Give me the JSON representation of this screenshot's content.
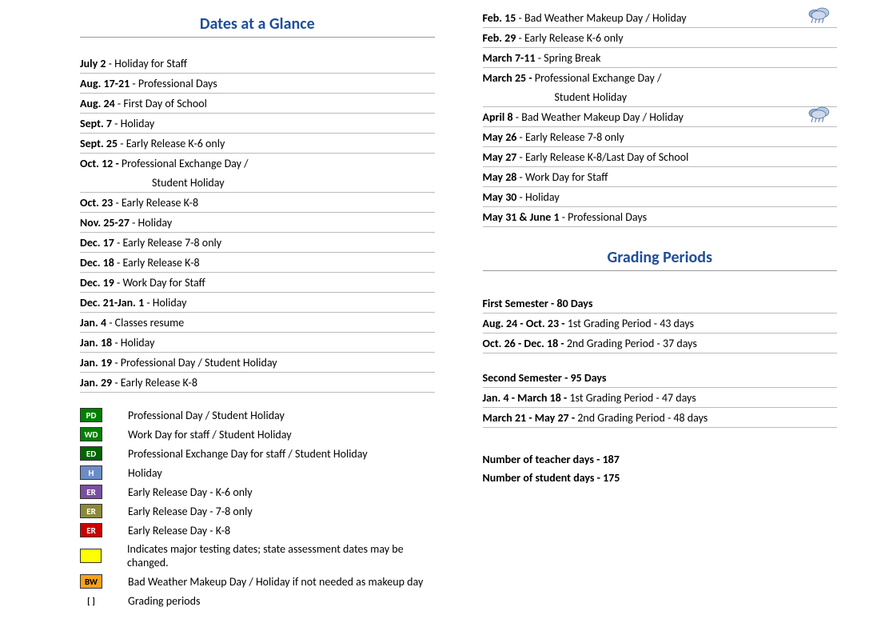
{
  "titles": {
    "dates": "Dates at a Glance",
    "grading": "Grading Periods"
  },
  "colors": {
    "title": "#1f4e9b",
    "pd_bg": "#008000",
    "pd_fg": "#ffffff",
    "wd_bg": "#008000",
    "wd_fg": "#ffffff",
    "ed_bg": "#006400",
    "ed_fg": "#ffffff",
    "h_bg": "#6b8cc7",
    "h_fg": "#ffffff",
    "er6_bg": "#7a4fa0",
    "er6_fg": "#ffffff",
    "er78_bg": "#8a8a3a",
    "er78_fg": "#ffffff",
    "er8_bg": "#cc0000",
    "er8_fg": "#ffffff",
    "test_bg": "#ffff00",
    "test_fg": "#000000",
    "bw_bg": "#f7a11a",
    "bw_fg": "#000000",
    "gp_fg": "#000000"
  },
  "left_dates": [
    {
      "date": "July 2",
      "sep": " - ",
      "desc": "Holiday for Staff"
    },
    {
      "date": "Aug. 17-21",
      "sep": " - ",
      "desc": "Professional Days"
    },
    {
      "date": "Aug. 24",
      "sep": " - ",
      "desc": "First Day of School"
    },
    {
      "date": "Sept. 7",
      "sep": " - ",
      "desc": "Holiday"
    },
    {
      "date": "Sept. 25",
      "sep": " - ",
      "desc": "Early Release K-6 only"
    },
    {
      "date": "Oct. 12 -",
      "sep": " ",
      "desc": "Professional Exchange Day /",
      "cont": "Student Holiday"
    },
    {
      "date": "Oct. 23",
      "sep": " - ",
      "desc": "Early Release K-8"
    },
    {
      "date": "Nov. 25-27",
      "sep": " - ",
      "desc": "Holiday"
    },
    {
      "date": "Dec. 17",
      "sep": " - ",
      "desc": "Early Release 7-8 only"
    },
    {
      "date": "Dec. 18",
      "sep": " - ",
      "desc": "Early Release K-8"
    },
    {
      "date": "Dec. 19",
      "sep": " - ",
      "desc": "Work Day for Staff"
    },
    {
      "date": "Dec. 21-Jan. 1",
      "sep": " - ",
      "desc": "Holiday"
    },
    {
      "date": "Jan. 4",
      "sep": " - ",
      "desc": "Classes resume"
    },
    {
      "date": "Jan. 18",
      "sep": " - ",
      "desc": "Holiday"
    },
    {
      "date": "Jan. 19",
      "sep": " - ",
      "desc": "Professional Day / Student Holiday"
    },
    {
      "date": "Jan. 29",
      "sep": " - ",
      "desc": "Early Release K-8"
    }
  ],
  "right_dates": [
    {
      "date": "Feb. 15",
      "sep": " - ",
      "desc": "Bad Weather Makeup Day / Holiday",
      "cloud": true
    },
    {
      "date": "Feb. 29",
      "sep": " - ",
      "desc": "Early Release K-6 only"
    },
    {
      "date": "March 7-11",
      "sep": " - ",
      "desc": "Spring Break"
    },
    {
      "date": "March 25 -",
      "sep": " ",
      "desc": "Professional Exchange Day /",
      "cont": "Student Holiday"
    },
    {
      "date": "April 8",
      "sep": " - ",
      "desc": "Bad Weather Makeup Day / Holiday",
      "cloud": true
    },
    {
      "date": "May 26",
      "sep": " - ",
      "desc": "Early Release 7-8 only"
    },
    {
      "date": "May 27",
      "sep": " - ",
      "desc": "Early Release K-8/Last Day of School"
    },
    {
      "date": "May  28",
      "sep": " - ",
      "desc": "Work Day for Staff"
    },
    {
      "date": "May 30",
      "sep": " - ",
      "desc": "Holiday"
    },
    {
      "date": "May 31 & June 1",
      "sep": " - ",
      "desc": "Professional Days"
    }
  ],
  "legend": [
    {
      "code": "PD",
      "bg": "pd_bg",
      "fg": "pd_fg",
      "text": "Professional Day / Student Holiday"
    },
    {
      "code": "WD",
      "bg": "wd_bg",
      "fg": "wd_fg",
      "text": "Work Day for staff / Student Holiday"
    },
    {
      "code": "ED",
      "bg": "ed_bg",
      "fg": "ed_fg",
      "text": "Professional Exchange Day for staff / Student Holiday"
    },
    {
      "code": "H",
      "bg": "h_bg",
      "fg": "h_fg",
      "text": "Holiday"
    },
    {
      "code": "ER",
      "bg": "er6_bg",
      "fg": "er6_fg",
      "text": "Early Release Day - K-6 only"
    },
    {
      "code": "ER",
      "bg": "er78_bg",
      "fg": "er78_fg",
      "text": "Early Release Day - 7-8 only"
    },
    {
      "code": "ER",
      "bg": "er8_bg",
      "fg": "er8_fg",
      "text": "Early Release Day - K-8"
    },
    {
      "code": "",
      "bg": "test_bg",
      "fg": "test_fg",
      "text": "Indicates major testing dates; state assessment dates may be changed."
    },
    {
      "code": "BW",
      "bg": "bw_bg",
      "fg": "bw_fg",
      "text": "Bad Weather Makeup Day / Holiday if not needed as makeup day"
    },
    {
      "code": "[    ]",
      "noborder": true,
      "fg": "gp_fg",
      "text": "Grading periods"
    }
  ],
  "grading": {
    "sem1_head": "First Semester - 80 Days",
    "sem1_rows": [
      {
        "date": "Aug. 24 - Oct. 23 -",
        "desc": " 1st Grading Period - 43 days"
      },
      {
        "date": "Oct. 26 - Dec. 18 -",
        "desc": " 2nd Grading Period - 37 days"
      }
    ],
    "sem2_head": "Second Semester - 95 Days",
    "sem2_rows": [
      {
        "date": "Jan. 4 - March 18 -",
        "desc": " 1st Grading Period - 47 days"
      },
      {
        "date": "March 21 - May 27 -",
        "desc": " 2nd Grading Period - 48 days"
      }
    ],
    "teacher_days": "Number of teacher days - 187",
    "student_days": "Number of student days - 175"
  }
}
